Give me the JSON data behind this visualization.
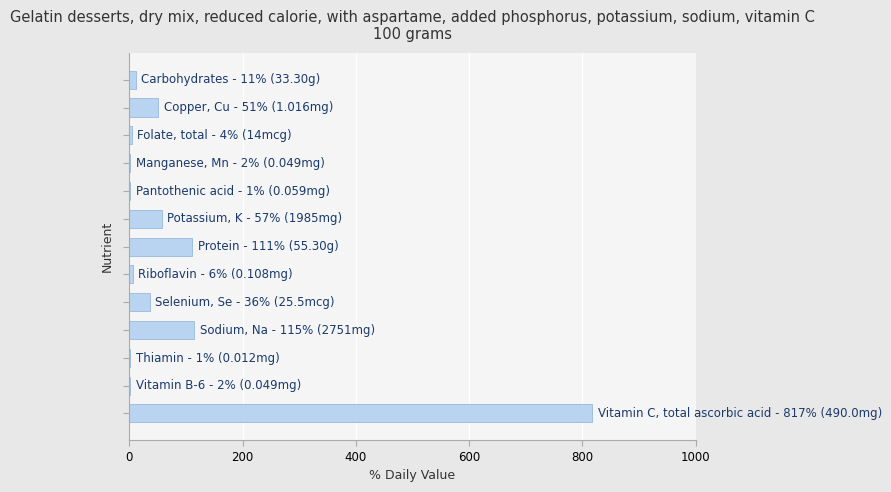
{
  "title": "Gelatin desserts, dry mix, reduced calorie, with aspartame, added phosphorus, potassium, sodium, vitamin C\n100 grams",
  "nutrients": [
    "Carbohydrates - 11% (33.30g)",
    "Copper, Cu - 51% (1.016mg)",
    "Folate, total - 4% (14mcg)",
    "Manganese, Mn - 2% (0.049mg)",
    "Pantothenic acid - 1% (0.059mg)",
    "Potassium, K - 57% (1985mg)",
    "Protein - 111% (55.30g)",
    "Riboflavin - 6% (0.108mg)",
    "Selenium, Se - 36% (25.5mcg)",
    "Sodium, Na - 115% (2751mg)",
    "Thiamin - 1% (0.012mg)",
    "Vitamin B-6 - 2% (0.049mg)",
    "Vitamin C, total ascorbic acid - 817% (490.0mg)"
  ],
  "values": [
    11,
    51,
    4,
    2,
    1,
    57,
    111,
    6,
    36,
    115,
    1,
    2,
    817
  ],
  "bar_color": "#b8d4f0",
  "bar_edge_color": "#8ab0d8",
  "background_color": "#e8e8e8",
  "plot_bg_color": "#f5f5f5",
  "xlabel": "% Daily Value",
  "ylabel": "Nutrient",
  "xlim": [
    0,
    1000
  ],
  "xticks": [
    0,
    200,
    400,
    600,
    800,
    1000
  ],
  "title_fontsize": 10.5,
  "label_fontsize": 8.5,
  "axis_fontsize": 9,
  "text_color": "#1a3a6c",
  "bar_height": 0.65
}
